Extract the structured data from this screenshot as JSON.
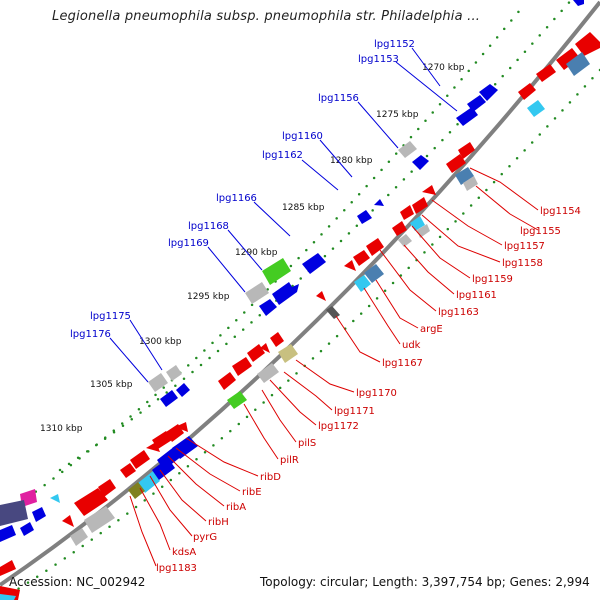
{
  "title": "Legionella pneumophila subsp. pneumophila str. Philadelphia ...",
  "footer": {
    "accession_label": "Accession:",
    "accession": "NC_002942",
    "topology_label": "Topology:",
    "topology": "circular",
    "length_label": "Length:",
    "length": "3,397,754 bp",
    "genes_label": "Genes:",
    "genes": "2,994"
  },
  "ticks": [
    "1270 kbp",
    "1275 kbp",
    "1280 kbp",
    "1285 kbp",
    "1290 kbp",
    "1295 kbp",
    "1300 kbp",
    "1305 kbp",
    "1310 kbp"
  ],
  "forward_gene_labels": [
    "lpg1152",
    "lpg1153",
    "lpg1156",
    "lpg1160",
    "lpg1162",
    "lpg1166",
    "lpg1168",
    "lpg1169",
    "lpg1175",
    "lpg1176"
  ],
  "reverse_gene_labels": [
    "lpg1154",
    "lpg1155",
    "lpg1157",
    "lpg1158",
    "lpg1159",
    "lpg1161",
    "lpg1163",
    "argE",
    "udk",
    "lpg1167",
    "lpg1170",
    "lpg1171",
    "lpg1172",
    "pilS",
    "pilR",
    "ribD",
    "ribE",
    "ribA",
    "ribH",
    "pyrG",
    "kdsA",
    "lpg1183"
  ],
  "colors": {
    "backbone": "#808080",
    "forward_gene": "#0000e0",
    "reverse_gene": "#e80000",
    "label_forward": "#0000cc",
    "label_reverse": "#cc0000",
    "tick_dots": "#228b22",
    "other_feature": "#b8b8b8",
    "rrna_feature": "#44cc22",
    "light_blue_feature": "#33c8f0",
    "steel_blue_feature": "#4a7fb0",
    "khaki_feature": "#c8c080",
    "olive_feature": "#808020",
    "magenta_feature": "#e020a0",
    "slate_feature": "#484880"
  }
}
